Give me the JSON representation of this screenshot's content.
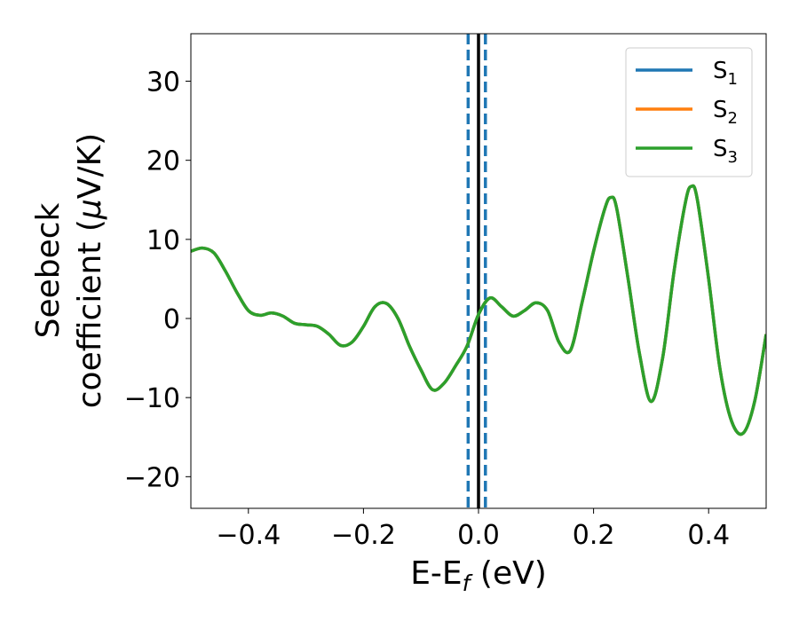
{
  "chart_data": {
    "type": "line",
    "title": "",
    "xlabel": {
      "main": "E-E",
      "sub": "f",
      "unit": " (eV)"
    },
    "ylabel": {
      "line1": "Seebeck",
      "line2": "coefficient  (",
      "mu": "μ",
      "unit": "V/K)"
    },
    "xlim": [
      -0.5,
      0.5
    ],
    "ylim": [
      -24,
      36
    ],
    "xticks": [
      -0.4,
      -0.2,
      0.0,
      0.2,
      0.4
    ],
    "xtick_labels": [
      "−0.4",
      "−0.2",
      "0.0",
      "0.2",
      "0.4"
    ],
    "yticks": [
      -20,
      -10,
      0,
      10,
      20,
      30
    ],
    "ytick_labels": [
      "−20",
      "−10",
      "0",
      "10",
      "20",
      "30"
    ],
    "grid": false,
    "legend_position": "top-right",
    "vertical_lines": [
      {
        "x": -0.018,
        "style": "dashed",
        "color": "#1f77b4"
      },
      {
        "x": 0.0,
        "style": "solid",
        "color": "#000000"
      },
      {
        "x": 0.012,
        "style": "dashed",
        "color": "#1f77b4"
      }
    ],
    "series": [
      {
        "name": "S",
        "sub": "1",
        "color": "#1f77b4"
      },
      {
        "name": "S",
        "sub": "2",
        "color": "#ff7f0e"
      },
      {
        "name": "S",
        "sub": "3",
        "color": "#2ca02c"
      }
    ],
    "x": [
      -0.5,
      -0.48,
      -0.46,
      -0.44,
      -0.42,
      -0.4,
      -0.38,
      -0.36,
      -0.34,
      -0.32,
      -0.3,
      -0.28,
      -0.26,
      -0.24,
      -0.22,
      -0.2,
      -0.18,
      -0.16,
      -0.14,
      -0.12,
      -0.1,
      -0.08,
      -0.06,
      -0.04,
      -0.02,
      0.0,
      0.02,
      0.04,
      0.06,
      0.08,
      0.1,
      0.12,
      0.14,
      0.16,
      0.18,
      0.2,
      0.22,
      0.23,
      0.24,
      0.26,
      0.28,
      0.3,
      0.32,
      0.34,
      0.36,
      0.37,
      0.38,
      0.4,
      0.42,
      0.44,
      0.46,
      0.48,
      0.5
    ],
    "y": [
      8.5,
      8.9,
      8.3,
      6.0,
      3.3,
      1.0,
      0.4,
      0.7,
      0.3,
      -0.6,
      -0.8,
      -1.0,
      -2.0,
      -3.4,
      -3.0,
      -1.0,
      1.5,
      1.9,
      0.0,
      -3.5,
      -6.5,
      -9.0,
      -8.2,
      -6.0,
      -3.5,
      0.5,
      2.6,
      1.5,
      0.3,
      1.0,
      2.0,
      1.0,
      -3.0,
      -4.0,
      2.0,
      8.5,
      14.0,
      15.3,
      14.0,
      5.0,
      -4.5,
      -10.5,
      -5.0,
      6.0,
      14.8,
      16.7,
      15.2,
      5.0,
      -6.5,
      -13.0,
      -14.5,
      -10.5,
      -2.0
    ]
  }
}
